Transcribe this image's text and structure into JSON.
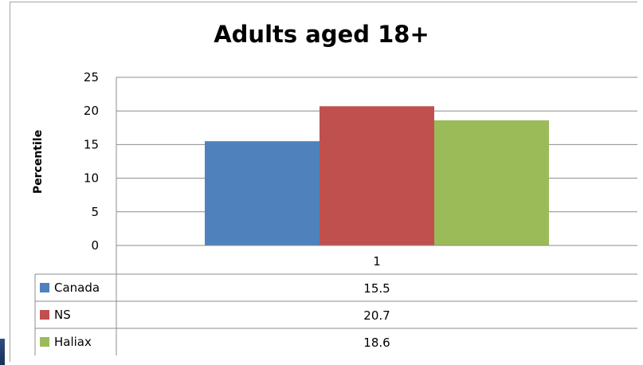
{
  "chart_data": {
    "type": "bar",
    "title": "Adults aged 18+",
    "ylabel": "Percentile",
    "xlabel": "",
    "categories": [
      "1"
    ],
    "ylim": [
      0,
      25
    ],
    "yticks": [
      0,
      5,
      10,
      15,
      20,
      25
    ],
    "grid": true,
    "legend": "data-table-below",
    "series": [
      {
        "name": "Canada",
        "values": [
          15.5
        ],
        "display": "15.5",
        "color": "#4f81bd"
      },
      {
        "name": "NS",
        "values": [
          20.7
        ],
        "display": "20.7",
        "color": "#c0504d"
      },
      {
        "name": "Haliax",
        "values": [
          18.6
        ],
        "display": "18.6",
        "color": "#9bbb59"
      }
    ]
  }
}
